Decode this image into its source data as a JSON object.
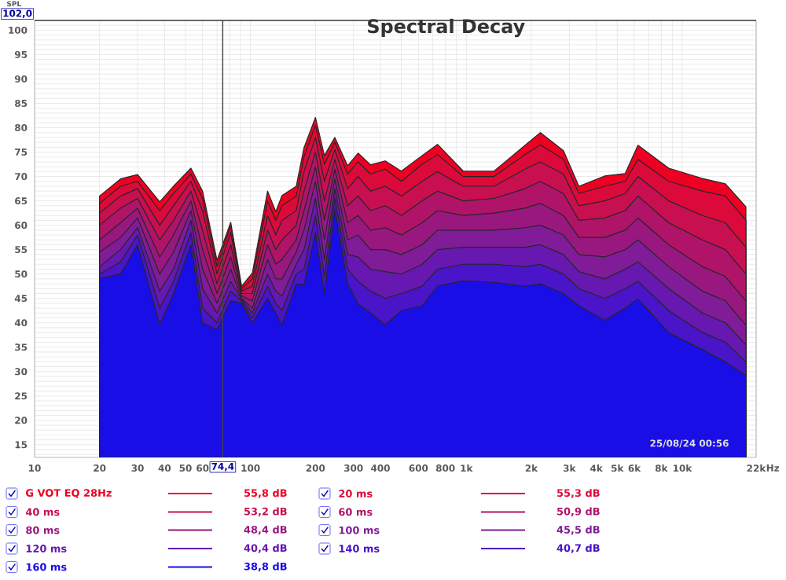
{
  "chart_data": {
    "type": "area",
    "title": "Spectral Decay",
    "ylabel": "SPL",
    "log": "x",
    "grid": true,
    "legend": "bottom",
    "xlim": [
      10,
      22000
    ],
    "ylim": [
      12.4,
      102
    ],
    "xticks": [
      10,
      20,
      30,
      40,
      50,
      60,
      {
        "value": 70,
        "label": null
      },
      {
        "value": 80,
        "label": null
      },
      {
        "value": 90,
        "label": null
      },
      100,
      200,
      300,
      400,
      {
        "value": 500,
        "label": null
      },
      600,
      {
        "value": 700,
        "label": null
      },
      800,
      {
        "value": 900,
        "label": null
      },
      {
        "value": 1000,
        "label": "1k"
      },
      {
        "value": 2000,
        "label": "2k"
      },
      {
        "value": 3000,
        "label": "3k"
      },
      {
        "value": 4000,
        "label": "4k"
      },
      {
        "value": 5000,
        "label": "5k"
      },
      {
        "value": 6000,
        "label": "6k"
      },
      {
        "value": 7000,
        "label": null
      },
      {
        "value": 8000,
        "label": "8k"
      },
      {
        "value": 9000,
        "label": null
      },
      {
        "value": 10000,
        "label": "10k"
      },
      {
        "value": 22000,
        "label": "22k"
      }
    ],
    "xlabel": "Hz",
    "yticks": [
      {
        "value": 13,
        "label": null
      },
      {
        "value": 14,
        "label": null
      },
      15,
      {
        "value": 16,
        "label": null
      },
      {
        "value": 17,
        "label": null
      },
      {
        "value": 18,
        "label": null
      },
      {
        "value": 19,
        "label": null
      },
      20,
      {
        "value": 21,
        "label": null
      },
      {
        "value": 22,
        "label": null
      },
      {
        "value": 23,
        "label": null
      },
      {
        "value": 24,
        "label": null
      },
      25,
      {
        "value": 26,
        "label": null
      },
      {
        "value": 27,
        "label": null
      },
      {
        "value": 28,
        "label": null
      },
      {
        "value": 29,
        "label": null
      },
      30,
      {
        "value": 31,
        "label": null
      },
      {
        "value": 32,
        "label": null
      },
      {
        "value": 33,
        "label": null
      },
      {
        "value": 34,
        "label": null
      },
      35,
      {
        "value": 36,
        "label": null
      },
      {
        "value": 37,
        "label": null
      },
      {
        "value": 38,
        "label": null
      },
      {
        "value": 39,
        "label": null
      },
      40,
      {
        "value": 41,
        "label": null
      },
      {
        "value": 42,
        "label": null
      },
      {
        "value": 43,
        "label": null
      },
      {
        "value": 44,
        "label": null
      },
      45,
      {
        "value": 46,
        "label": null
      },
      {
        "value": 47,
        "label": null
      },
      {
        "value": 48,
        "label": null
      },
      {
        "value": 49,
        "label": null
      },
      50,
      {
        "value": 51,
        "label": null
      },
      {
        "value": 52,
        "label": null
      },
      {
        "value": 53,
        "label": null
      },
      {
        "value": 54,
        "label": null
      },
      55,
      {
        "value": 56,
        "label": null
      },
      {
        "value": 57,
        "label": null
      },
      {
        "value": 58,
        "label": null
      },
      {
        "value": 59,
        "label": null
      },
      60,
      {
        "value": 61,
        "label": null
      },
      {
        "value": 62,
        "label": null
      },
      {
        "value": 63,
        "label": null
      },
      {
        "value": 64,
        "label": null
      },
      65,
      {
        "value": 66,
        "label": null
      },
      {
        "value": 67,
        "label": null
      },
      {
        "value": 68,
        "label": null
      },
      {
        "value": 69,
        "label": null
      },
      70,
      {
        "value": 71,
        "label": null
      },
      {
        "value": 72,
        "label": null
      },
      {
        "value": 73,
        "label": null
      },
      {
        "value": 74,
        "label": null
      },
      75,
      {
        "value": 76,
        "label": null
      },
      {
        "value": 77,
        "label": null
      },
      {
        "value": 78,
        "label": null
      },
      {
        "value": 79,
        "label": null
      },
      80,
      {
        "value": 81,
        "label": null
      },
      {
        "value": 82,
        "label": null
      },
      {
        "value": 83,
        "label": null
      },
      {
        "value": 84,
        "label": null
      },
      85,
      {
        "value": 86,
        "label": null
      },
      {
        "value": 87,
        "label": null
      },
      {
        "value": 88,
        "label": null
      },
      {
        "value": 89,
        "label": null
      },
      90,
      {
        "value": 91,
        "label": null
      },
      {
        "value": 92,
        "label": null
      },
      {
        "value": 93,
        "label": null
      },
      {
        "value": 94,
        "label": null
      },
      95,
      {
        "value": 96,
        "label": null
      },
      {
        "value": 97,
        "label": null
      },
      {
        "value": 98,
        "label": null
      },
      {
        "value": 99,
        "label": null
      },
      100,
      {
        "value": 101,
        "label": null
      }
    ],
    "ref_lines": [
      {
        "axis": "x",
        "value": 74.4,
        "label": "74,4",
        "color": "#404040"
      },
      {
        "axis": "y",
        "value": 102,
        "label": "102,0",
        "color": "#404040"
      }
    ],
    "annotations": [
      "25/08/24 00:56",
      "55,8 dB",
      "55,3 dB",
      "53,2 dB",
      "50,9 dB",
      "48,4 dB",
      "45,5 dB",
      "40,4 dB",
      "40,7 dB",
      "38,8 dB"
    ],
    "x": [
      20,
      25,
      30,
      38,
      44,
      53,
      60,
      70,
      81,
      91,
      102,
      120,
      131,
      140,
      163,
      177,
      200,
      220,
      246,
      282,
      315,
      360,
      421,
      500,
      624,
      735,
      968,
      1344,
      1868,
      2203,
      2818,
      3322,
      4373,
      5443,
      6237,
      8660,
      12400,
      15850,
      19730
    ],
    "series": [
      {
        "name": "G VOT EQ 28Hz",
        "color": "#ee0022",
        "values": [
          66.0,
          69.5,
          70.4,
          64.8,
          68,
          71.7,
          67,
          52.8,
          60.6,
          47.5,
          50.2,
          67,
          62.8,
          66.1,
          68,
          75.9,
          82.1,
          74.3,
          78,
          72.2,
          74.8,
          72.4,
          73.2,
          71.1,
          74.3,
          76.6,
          71.1,
          71.1,
          76.4,
          79,
          75.3,
          68,
          70.1,
          70.6,
          76.4,
          71.7,
          69.6,
          68.5,
          63.8
        ]
      },
      {
        "name": "20 ms",
        "color": "#dc0a3a",
        "values": [
          64.5,
          68,
          69,
          63,
          66.5,
          70.5,
          65.5,
          51.5,
          60,
          47,
          49,
          65,
          61,
          64,
          66,
          74,
          80.5,
          72.5,
          77,
          70.5,
          73,
          70.5,
          71.5,
          69,
          72.5,
          74.5,
          70,
          70,
          74.5,
          76.5,
          73.5,
          66.5,
          68,
          69,
          73.5,
          69,
          67,
          66,
          61
        ]
      },
      {
        "name": "40 ms",
        "color": "#c81050",
        "values": [
          62.5,
          66,
          67.5,
          60,
          64,
          69,
          63,
          50,
          58.5,
          46.5,
          47.5,
          62,
          58,
          61,
          63,
          71,
          78,
          69,
          75.5,
          67.5,
          70,
          67,
          68,
          66,
          69,
          71,
          68,
          68,
          71.5,
          73,
          70.5,
          64,
          65,
          66.5,
          70,
          65,
          62,
          60.5,
          55.5
        ]
      },
      {
        "name": "60 ms",
        "color": "#b01468",
        "values": [
          60,
          63.5,
          65.5,
          57,
          61,
          67,
          59,
          48,
          56,
          46,
          46,
          59,
          55,
          57,
          60,
          67,
          75,
          65,
          73.5,
          64,
          66,
          63,
          64,
          62,
          65,
          67,
          65,
          65.5,
          67.5,
          69,
          66.5,
          61,
          61.5,
          63,
          66,
          60.5,
          57,
          55,
          50
        ]
      },
      {
        "name": "80 ms",
        "color": "#981880",
        "values": [
          57,
          60.5,
          63.5,
          53.5,
          58,
          65,
          55,
          46,
          53.5,
          45.5,
          44.5,
          56,
          52,
          53,
          57,
          63,
          72,
          61,
          71.5,
          60.5,
          62,
          59,
          59.5,
          58,
          60.5,
          63,
          62,
          62.5,
          63.5,
          64.5,
          62,
          57.5,
          57.5,
          59,
          61.5,
          56,
          51.5,
          49.5,
          44.5
        ]
      },
      {
        "name": "100 ms",
        "color": "#801c98",
        "values": [
          54.5,
          57.5,
          61.5,
          50,
          54.5,
          63,
          51,
          44,
          51,
          45,
          43,
          53,
          49,
          49,
          54.5,
          59,
          69,
          57,
          69.5,
          57,
          58,
          55,
          55,
          54,
          56,
          59,
          59,
          59,
          59.5,
          60,
          58,
          54,
          53.5,
          55,
          57,
          51.5,
          46.5,
          44.5,
          39.5
        ]
      },
      {
        "name": "120 ms",
        "color": "#6618b0",
        "values": [
          51.5,
          55,
          59.5,
          46.5,
          51,
          61,
          47,
          42,
          48.5,
          44.8,
          42,
          50,
          46.5,
          45.5,
          52,
          55,
          65.5,
          53,
          67.5,
          54,
          53.5,
          51,
          50.5,
          50,
          52,
          55,
          55.5,
          55.5,
          55.5,
          56,
          54,
          50.5,
          49,
          51,
          52.5,
          47,
          42,
          40,
          35.5
        ]
      },
      {
        "name": "140 ms",
        "color": "#4a14c8",
        "values": [
          50,
          52.5,
          58,
          43,
          48.5,
          58.5,
          43,
          40,
          46.5,
          44.5,
          41,
          47.5,
          44,
          42.5,
          50,
          51,
          62,
          49.5,
          65.5,
          51,
          48.5,
          46.5,
          45,
          46,
          47.5,
          51,
          52,
          52,
          51.5,
          52,
          50,
          47,
          45,
          47,
          48.5,
          42.5,
          38,
          36,
          32
        ]
      },
      {
        "name": "160 ms",
        "color": "#1a0ee6",
        "values": [
          49.1,
          50,
          56,
          39.6,
          46,
          56,
          40,
          38.6,
          44.5,
          44,
          40,
          45,
          42,
          39.6,
          48,
          47.8,
          58.5,
          46,
          63.3,
          48,
          43.9,
          42,
          39.6,
          42.5,
          43.5,
          47.5,
          48.6,
          48.3,
          47.5,
          48,
          46,
          43.5,
          40.5,
          43,
          44.9,
          38,
          34.5,
          32,
          29.2
        ]
      }
    ]
  }
}
